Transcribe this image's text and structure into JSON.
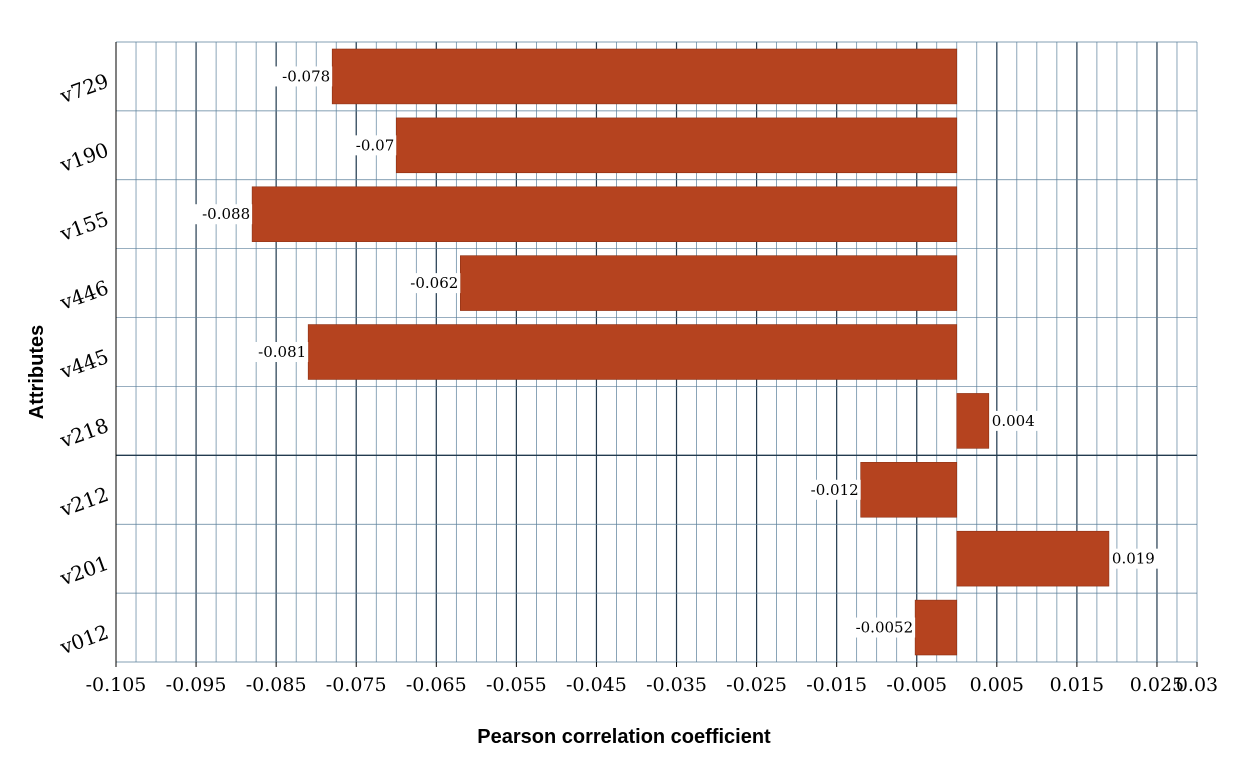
{
  "chart_data": {
    "type": "bar",
    "orientation": "horizontal",
    "xlabel": "Pearson correlation coefficient",
    "ylabel": "Attributes",
    "categories": [
      "v729",
      "v190",
      "v155",
      "v446",
      "v445",
      "v218",
      "v212",
      "v201",
      "v012"
    ],
    "values": [
      -0.078,
      -0.07,
      -0.088,
      -0.062,
      -0.081,
      0.004,
      -0.012,
      0.019,
      -0.0052
    ],
    "value_labels": [
      "-0.078",
      "-0.07",
      "-0.088",
      "-0.062",
      "-0.081",
      "0.004",
      "-0.012",
      "0.019",
      "-0.0052"
    ],
    "xlim": [
      -0.105,
      0.03
    ],
    "x_ticks": [
      -0.105,
      -0.095,
      -0.085,
      -0.075,
      -0.065,
      -0.055,
      -0.045,
      -0.035,
      -0.025,
      -0.015,
      -0.005,
      0.005,
      0.015,
      0.025,
      0.03
    ],
    "x_tick_labels": [
      "-0.105",
      "-0.095",
      "-0.085",
      "-0.075",
      "-0.065",
      "-0.055",
      "-0.045",
      "-0.035",
      "-0.025",
      "-0.015",
      "-0.005",
      "0.005",
      "0.015",
      "0.025",
      "0.03"
    ],
    "grid": true,
    "bar_color": "#b5431f",
    "grid_color": "#5a7f9a",
    "major_grid_color": "#233b4f"
  }
}
